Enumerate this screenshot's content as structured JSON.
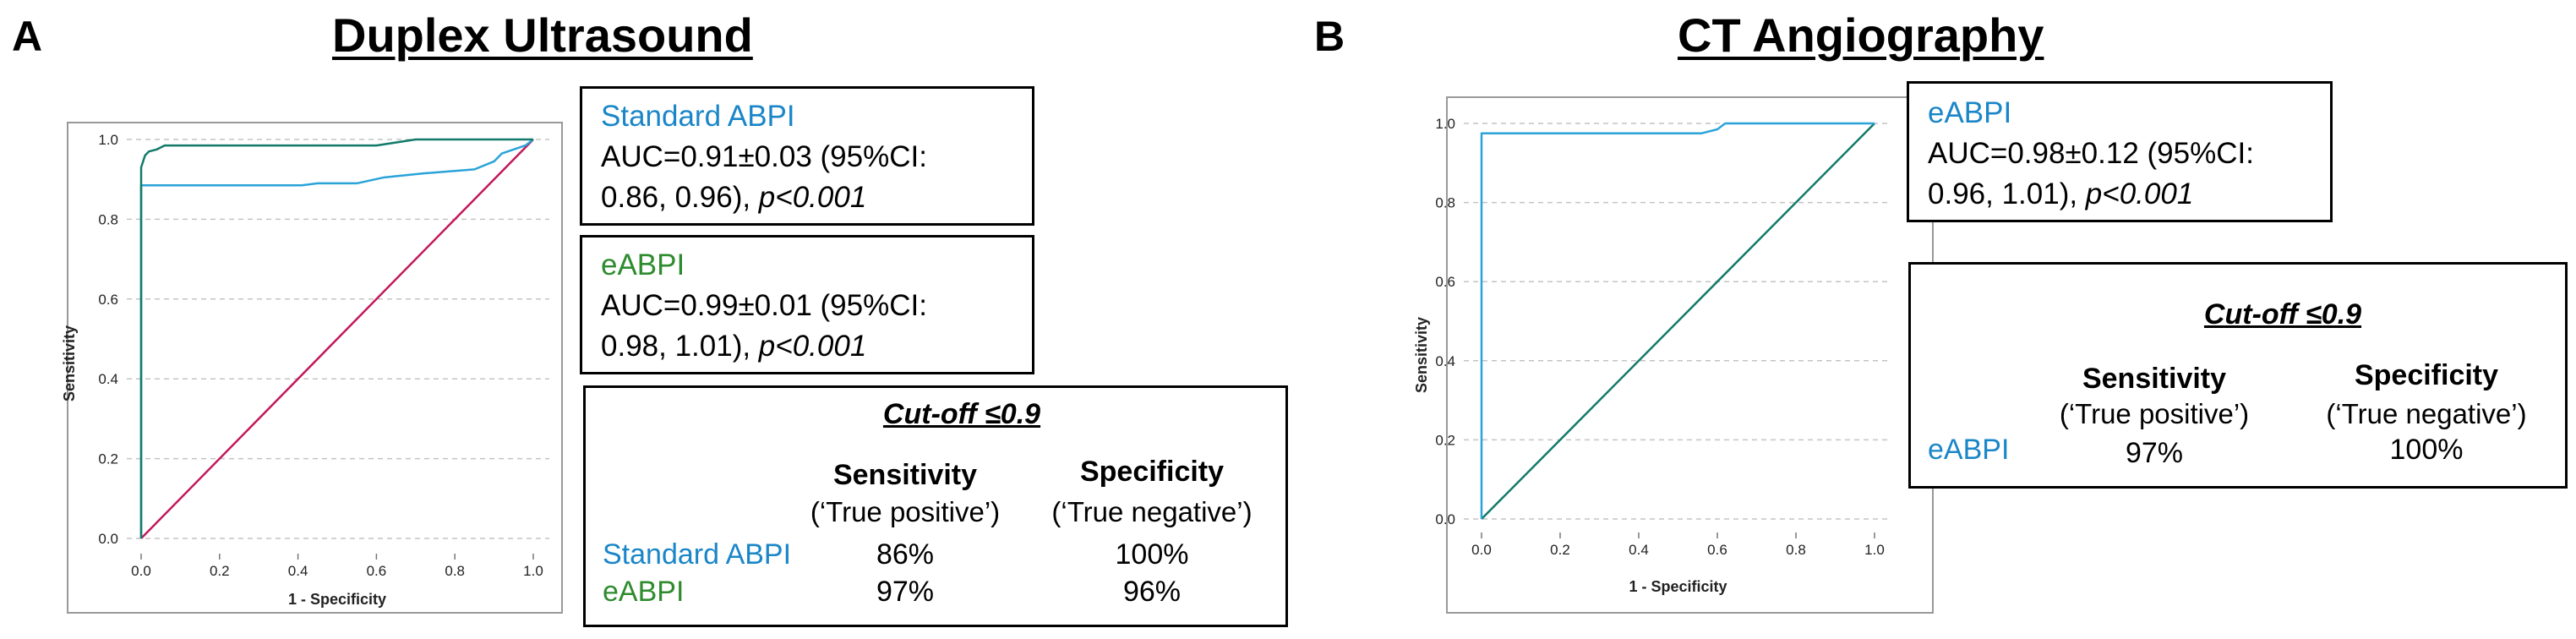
{
  "panels": [
    {
      "letter": "A",
      "title": "Duplex Ultrasound",
      "boxes": [
        {
          "name": "Standard ABPI",
          "line1": "AUC=0.91±0.03 (95%CI:",
          "line2": "0.86, 0.96), ",
          "p": "p<0.001"
        },
        {
          "name": "eABPI",
          "line1": "AUC=0.99±0.01 (95%CI:",
          "line2": "0.98, 1.01), ",
          "p": "p<0.001"
        }
      ],
      "cutoff": {
        "title": "Cut-off ≤0.9",
        "sens_header": "Sensitivity",
        "sens_sub": "(‘True positive’)",
        "spec_header": "Specificity",
        "spec_sub": "(‘True negative’)",
        "rows": [
          {
            "name": "Standard ABPI",
            "sens": "86%",
            "spec": "100%"
          },
          {
            "name": "eABPI",
            "sens": "97%",
            "spec": "96%"
          }
        ]
      }
    },
    {
      "letter": "B",
      "title": "CT Angiography",
      "boxes": [
        {
          "name": "eABPI",
          "line1": "AUC=0.98±0.12 (95%CI:",
          "line2": "0.96, 1.01), ",
          "p": "p<0.001"
        }
      ],
      "cutoff": {
        "title": "Cut-off ≤0.9",
        "sens_header": "Sensitivity",
        "sens_sub": "(‘True positive’)",
        "spec_header": "Specificity",
        "spec_sub": "(‘True negative’)",
        "rows": [
          {
            "name": "eABPI",
            "sens": "97%",
            "spec": "100%"
          }
        ]
      }
    }
  ],
  "chart_data": [
    {
      "type": "line",
      "title": "Duplex Ultrasound",
      "xlabel": "1 - Specificity",
      "ylabel": "Sensitivity",
      "xlim": [
        0,
        1
      ],
      "ylim": [
        0,
        1
      ],
      "ticks": [
        "0.0",
        "0.2",
        "0.4",
        "0.6",
        "0.8",
        "1.0"
      ],
      "grid": "horizontal dashed",
      "series": [
        {
          "name": "",
          "color": "#c2185b",
          "x": [
            0,
            1
          ],
          "y": [
            0,
            1
          ]
        },
        {
          "name": "",
          "color": "#2aa3d8",
          "x": [
            0,
            0,
            0.41,
            0.45,
            0.55,
            0.62,
            0.72,
            0.85,
            0.9,
            0.92,
            0.98,
            1.0
          ],
          "y": [
            0,
            0.885,
            0.885,
            0.89,
            0.89,
            0.905,
            0.915,
            0.925,
            0.945,
            0.965,
            0.985,
            1.0
          ]
        },
        {
          "name": "",
          "color": "#127a6a",
          "x": [
            0,
            0,
            0.01,
            0.02,
            0.04,
            0.06,
            0.1,
            0.6,
            0.7,
            1.0
          ],
          "y": [
            0,
            0.93,
            0.96,
            0.97,
            0.975,
            0.985,
            0.985,
            0.985,
            1.0,
            1.0
          ]
        }
      ]
    },
    {
      "type": "line",
      "title": "CT Angiography",
      "xlabel": "1 - Specificity",
      "ylabel": "Sensitivity",
      "xlim": [
        0,
        1
      ],
      "ylim": [
        0,
        1
      ],
      "ticks": [
        "0.0",
        "0.2",
        "0.4",
        "0.6",
        "0.8",
        "1.0"
      ],
      "grid": "horizontal dashed",
      "series": [
        {
          "name": "",
          "color": "#127a6a",
          "x": [
            0,
            1
          ],
          "y": [
            0,
            1
          ]
        },
        {
          "name": "",
          "color": "#2aa3d8",
          "x": [
            0,
            0,
            0.56,
            0.6,
            0.62,
            1.0
          ],
          "y": [
            0,
            0.975,
            0.975,
            0.985,
            1.0,
            1.0
          ]
        }
      ]
    }
  ]
}
